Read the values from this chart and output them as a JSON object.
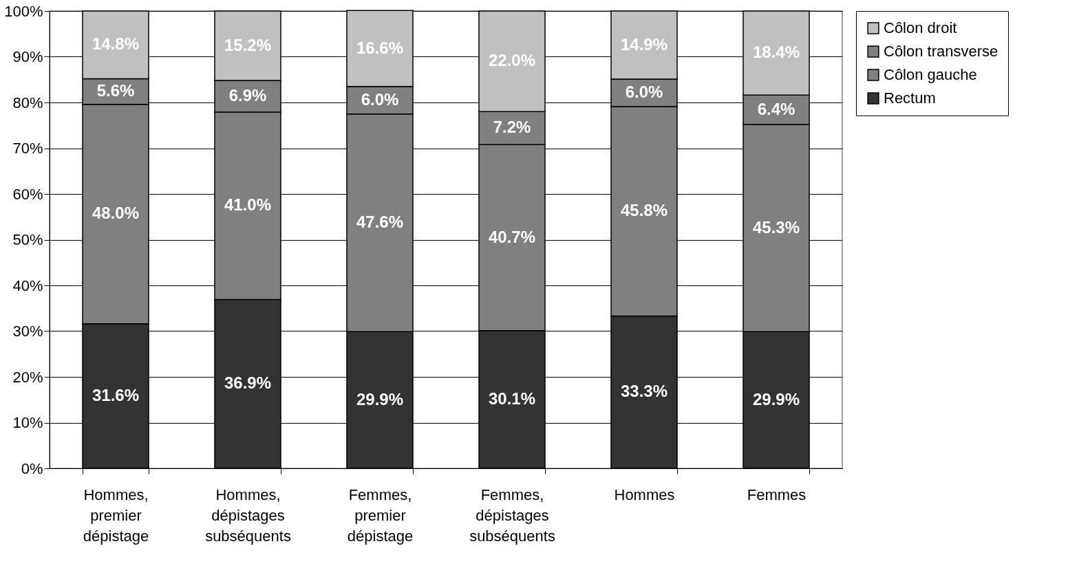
{
  "chart_data": {
    "type": "bar",
    "stacked": true,
    "categories": [
      "Hommes, premier dépistage",
      "Hommes, dépistages subséquents",
      "Femmes, premier dépistage",
      "Femmes, dépistages subséquents",
      "Hommes",
      "Femmes"
    ],
    "series": [
      {
        "name": "Rectum",
        "color": "#333333",
        "values": [
          31.6,
          36.9,
          29.9,
          30.1,
          33.3,
          29.9
        ],
        "value_labels": [
          "31.6%",
          "36.9%",
          "29.9%",
          "30.1%",
          "33.3%",
          "29.9%"
        ]
      },
      {
        "name": "Côlon gauche",
        "color": "#808080",
        "values": [
          48.0,
          41.0,
          47.6,
          40.7,
          45.8,
          45.3
        ],
        "value_labels": [
          "48.0%",
          "41.0%",
          "47.6%",
          "40.7%",
          "45.8%",
          "45.3%"
        ]
      },
      {
        "name": "Côlon transverse",
        "color": "#808080",
        "values": [
          5.6,
          6.9,
          6.0,
          7.2,
          6.0,
          6.4
        ],
        "value_labels": [
          "5.6%",
          "6.9%",
          "6.0%",
          "7.2%",
          "6.0%",
          "6.4%"
        ]
      },
      {
        "name": "Côlon droit",
        "color": "#c0c0c0",
        "values": [
          14.8,
          15.2,
          16.6,
          22.0,
          14.9,
          18.4
        ],
        "value_labels": [
          "14.8%",
          "15.2%",
          "16.6%",
          "22.0%",
          "14.9%",
          "18.4%"
        ]
      }
    ],
    "ylim": [
      0,
      100
    ],
    "yticks": [
      {
        "value": 0,
        "label": "0%"
      },
      {
        "value": 10,
        "label": "10%"
      },
      {
        "value": 20,
        "label": "20%"
      },
      {
        "value": 30,
        "label": "30%"
      },
      {
        "value": 40,
        "label": "40%"
      },
      {
        "value": 50,
        "label": "50%"
      },
      {
        "value": 60,
        "label": "60%"
      },
      {
        "value": 70,
        "label": "70%"
      },
      {
        "value": 80,
        "label": "80%"
      },
      {
        "value": 90,
        "label": "90%"
      },
      {
        "value": 100,
        "label": "100%"
      }
    ],
    "grid": "y",
    "legend": "right"
  }
}
